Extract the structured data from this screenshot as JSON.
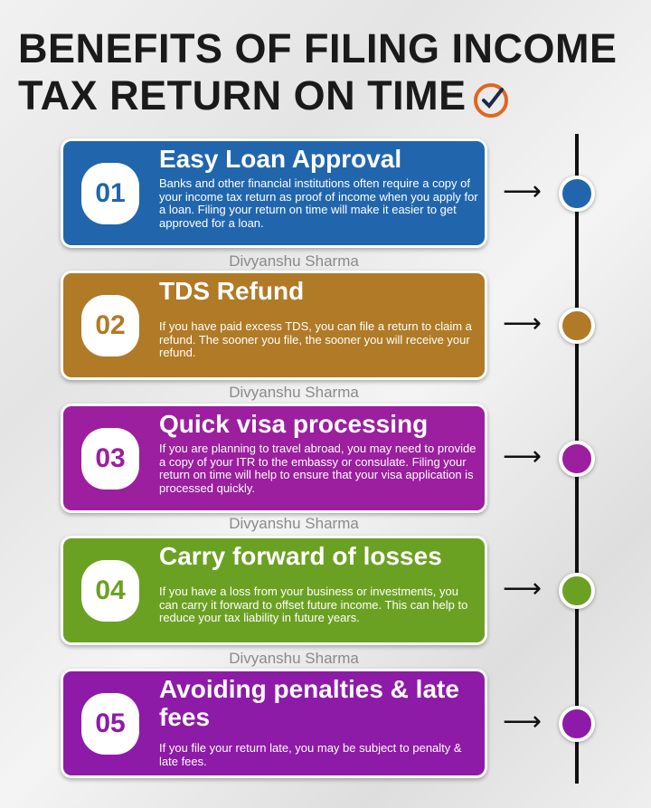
{
  "title": {
    "line1": "BENEFITS OF FILING INCOME",
    "line2": "TAX RETURN ON TIME"
  },
  "icons": {
    "title": "checkmark-clock-icon",
    "arrow": "right-arrow-icon",
    "dot": "timeline-dot-icon"
  },
  "watermark": "Divyanshu Sharma",
  "items": [
    {
      "number": "01",
      "heading": "Easy Loan Approval",
      "text": "Banks and other financial institutions often require a copy of your income tax return as proof of income when you apply for a loan. Filing your return on time will make it easier to get approved for a loan.",
      "color": "#2166ad"
    },
    {
      "number": "02",
      "heading": "TDS Refund",
      "text": "If you have paid excess TDS, you can file a return to claim a refund. The sooner you file, the sooner you will receive your refund.",
      "color": "#b07a26"
    },
    {
      "number": "03",
      "heading": "Quick visa processing",
      "text": "If you are planning to travel abroad, you may need to provide a copy of your ITR to the embassy or consulate. Filing your return on time will help to ensure that your visa application is processed quickly.",
      "color": "#9b1f9e"
    },
    {
      "number": "04",
      "heading": "Carry forward of losses",
      "text": "If you have a loss from your business or investments, you can carry it forward to offset future income. This can help to reduce your tax liability in future years.",
      "color": "#6ba122"
    },
    {
      "number": "05",
      "heading": "Avoiding penalties & late fees",
      "text": "If you file your return late, you may be subject to penalty & late fees.",
      "color": "#8e1aa8"
    }
  ]
}
